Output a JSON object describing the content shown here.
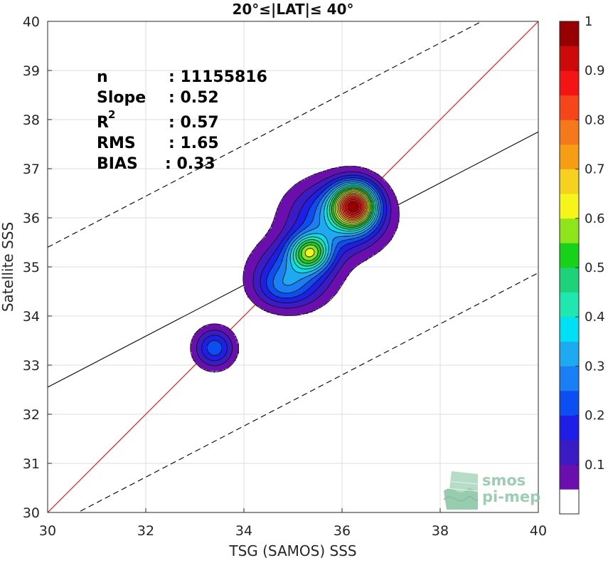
{
  "chart_data": {
    "type": "contour-density",
    "title": "20°≤|LAT|≤ 40°",
    "xlabel": "TSG (SAMOS) SSS",
    "ylabel": "Satellite SSS",
    "xlim": [
      30,
      40
    ],
    "ylim": [
      30,
      40
    ],
    "x_ticks": [
      "30",
      "32",
      "34",
      "36",
      "38",
      "40"
    ],
    "y_ticks": [
      "30",
      "31",
      "32",
      "33",
      "34",
      "35",
      "36",
      "37",
      "38",
      "39",
      "40"
    ],
    "grid": true,
    "stats": {
      "n_label": "n",
      "n_value": ": 11155816",
      "slope_label": "Slope",
      "slope_value": ": 0.52",
      "r2_label": "R",
      "r2_sup": "2",
      "r2_value": ": 0.57",
      "rms_label": "RMS",
      "rms_value": ": 1.65",
      "bias_label": "BIAS",
      "bias_value": ": 0.33"
    },
    "lines": [
      {
        "name": "identity",
        "style": "solid",
        "color": "#ff0000",
        "slope": 1,
        "intercept": 0
      },
      {
        "name": "regression",
        "style": "solid",
        "color": "#000000",
        "points": [
          [
            30,
            32.55
          ],
          [
            40,
            37.75
          ]
        ]
      },
      {
        "name": "upper-bound",
        "style": "dashed",
        "color": "#000000",
        "points": [
          [
            30,
            35.4
          ],
          [
            40,
            40.6
          ]
        ]
      },
      {
        "name": "lower-bound",
        "style": "dashed",
        "color": "#000000",
        "points": [
          [
            30,
            29.68
          ],
          [
            40,
            34.88
          ]
        ]
      }
    ],
    "density_blobs": [
      {
        "cx": 36.25,
        "cy": 36.25,
        "sx": 0.3,
        "sy": 0.3,
        "amp": 1.0
      },
      {
        "cx": 35.9,
        "cy": 36.0,
        "sx": 0.65,
        "sy": 0.5,
        "amp": 0.38
      },
      {
        "cx": 35.35,
        "cy": 35.3,
        "sx": 0.28,
        "sy": 0.25,
        "amp": 0.55
      },
      {
        "cx": 35.0,
        "cy": 34.85,
        "sx": 0.55,
        "sy": 0.45,
        "amp": 0.32
      },
      {
        "cx": 34.75,
        "cy": 34.55,
        "sx": 0.35,
        "sy": 0.25,
        "amp": 0.12
      },
      {
        "cx": 33.4,
        "cy": 33.35,
        "sx": 0.28,
        "sy": 0.28,
        "amp": 0.3
      }
    ],
    "contour_levels": [
      0.05,
      0.1,
      0.15,
      0.2,
      0.25,
      0.3,
      0.35,
      0.4,
      0.45,
      0.5,
      0.55,
      0.6,
      0.65,
      0.7,
      0.75,
      0.8,
      0.85,
      0.9,
      0.95
    ],
    "colorbar": {
      "min": 0,
      "max": 1,
      "ticks": [
        "0.1",
        "0.2",
        "0.3",
        "0.4",
        "0.5",
        "0.6",
        "0.7",
        "0.8",
        "0.9",
        "1"
      ],
      "colors": [
        "#ffffff",
        "#6a0fae",
        "#3b1cc4",
        "#1e1ee6",
        "#0b4ef2",
        "#1a7ef5",
        "#1eaaf0",
        "#00e0f5",
        "#1ee8b0",
        "#1ed27a",
        "#16d218",
        "#8ee61a",
        "#f5f51a",
        "#f5d21e",
        "#f59e14",
        "#f5781a",
        "#f5461a",
        "#f51414",
        "#cd0a0a",
        "#960000"
      ]
    }
  },
  "watermark": {
    "line1": "smos",
    "line2": "pi-mep",
    "color": "#8cc5a6"
  }
}
